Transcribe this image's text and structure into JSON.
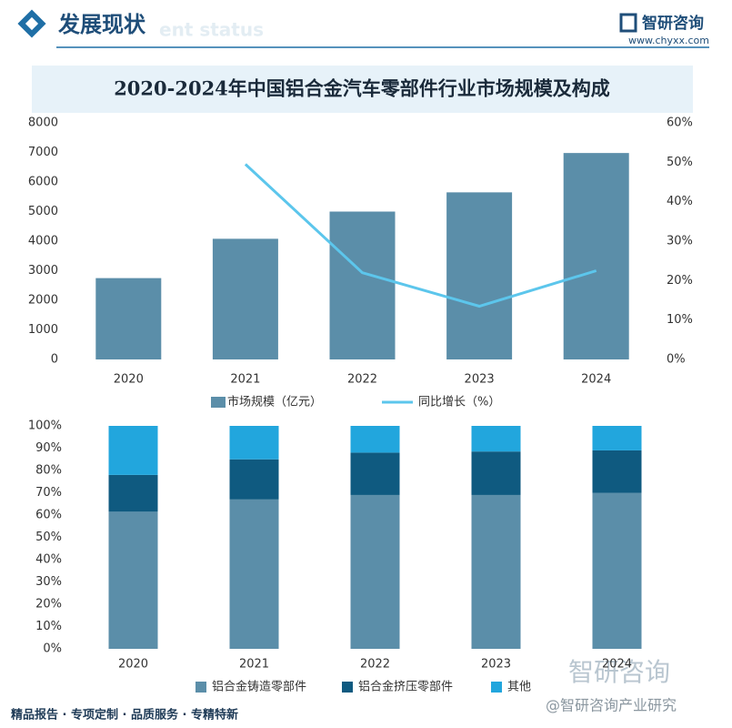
{
  "header": {
    "title": "发展现状",
    "subtitle": "ent status",
    "logo": "智研咨询",
    "url": "www.chyxx.com"
  },
  "chart_data": [
    {
      "type": "bar",
      "title": "2020-2024年中国铝合金汽车零部件行业市场规模及构成",
      "categories": [
        "2020",
        "2021",
        "2022",
        "2023",
        "2024"
      ],
      "series": [
        {
          "name": "市场规模（亿元）",
          "color": "#5b8ea9",
          "values": [
            2750,
            4080,
            5000,
            5650,
            6980
          ]
        },
        {
          "name": "同比增长（%）",
          "color": "#5cc6ec",
          "mark": "line",
          "axis": "y2",
          "values": [
            null,
            49.5,
            22,
            13.5,
            22.5
          ]
        }
      ],
      "ylim": [
        0,
        8000
      ],
      "yticks": [
        0,
        1000,
        2000,
        3000,
        4000,
        5000,
        6000,
        7000,
        8000
      ],
      "y2lim": [
        0,
        60
      ],
      "y2ticks": [
        {
          "value": 0,
          "label": "0%"
        },
        {
          "value": 10,
          "label": "10%"
        },
        {
          "value": 20,
          "label": "20%"
        },
        {
          "value": 30,
          "label": "30%"
        },
        {
          "value": 40,
          "label": "40%"
        },
        {
          "value": 50,
          "label": "50%"
        },
        {
          "value": 60,
          "label": "60%"
        }
      ],
      "grid": false
    },
    {
      "type": "stacked_bar",
      "categories": [
        "2020",
        "2021",
        "2022",
        "2023",
        "2024"
      ],
      "series": [
        {
          "name": "铝合金铸造零部件",
          "color": "#5b8ea9",
          "values": [
            61.5,
            67,
            69,
            69,
            70
          ]
        },
        {
          "name": "铝合金挤压零部件",
          "color": "#0f5a80",
          "values": [
            16.5,
            18,
            19,
            19.5,
            19
          ]
        },
        {
          "name": "其他",
          "color": "#22a6dd",
          "values": [
            22,
            15,
            12,
            11.5,
            11
          ]
        }
      ],
      "ylim": [
        0,
        100
      ],
      "yticks": [
        {
          "value": 0,
          "label": "0%"
        },
        {
          "value": 10,
          "label": "10%"
        },
        {
          "value": 20,
          "label": "20%"
        },
        {
          "value": 30,
          "label": "30%"
        },
        {
          "value": 40,
          "label": "40%"
        },
        {
          "value": 50,
          "label": "50%"
        },
        {
          "value": 60,
          "label": "60%"
        },
        {
          "value": 70,
          "label": "70%"
        },
        {
          "value": 80,
          "label": "80%"
        },
        {
          "value": 90,
          "label": "90%"
        },
        {
          "value": 100,
          "label": "100%"
        }
      ],
      "grid": false
    }
  ],
  "footer": {
    "text": "精品报告 · 专项定制 · 品质服务 · 专精特新",
    "watermark_logo": "智研咨询",
    "watermark_account": "@智研咨询产业研究"
  }
}
